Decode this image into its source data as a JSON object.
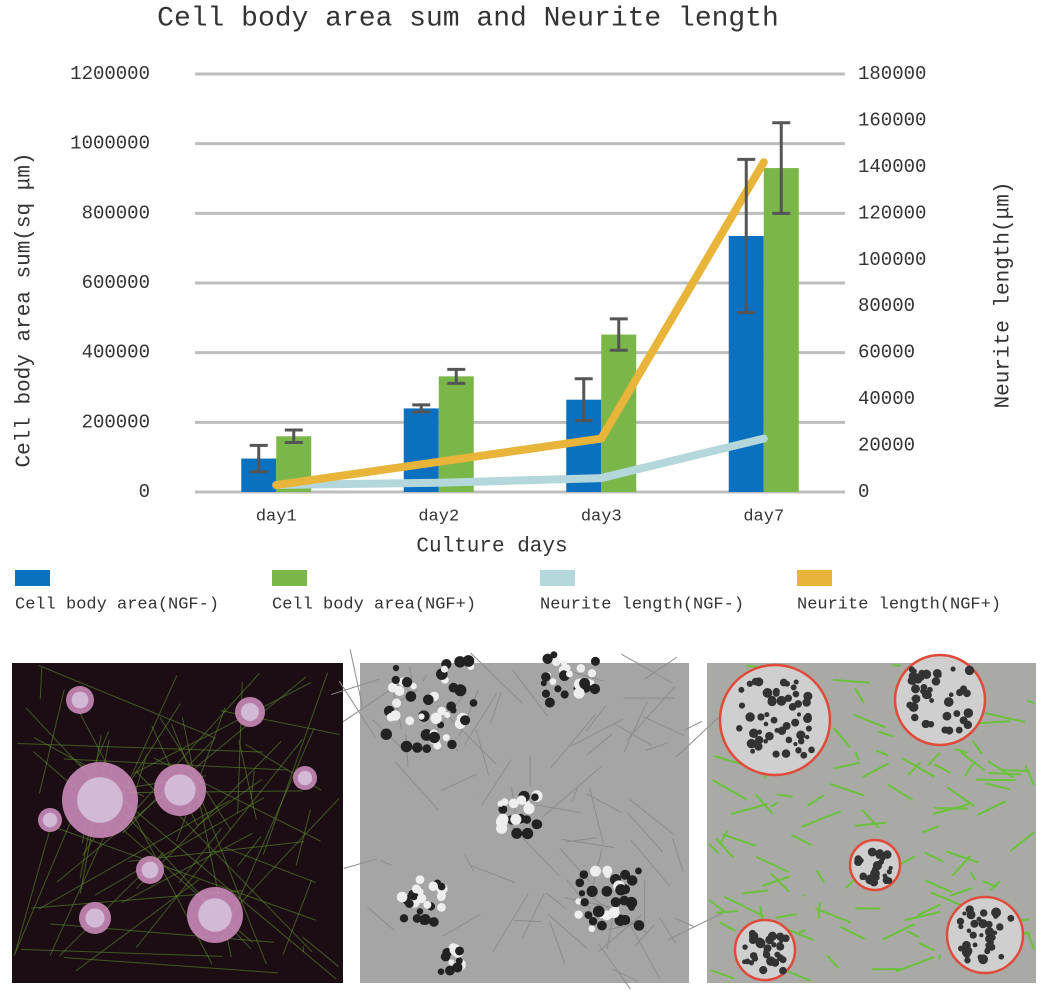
{
  "chart_data": {
    "type": "bar",
    "title": "Cell body area sum and Neurite length",
    "x_label": "Culture days",
    "y_label": "Cell body area sum(sq μm)",
    "y2_label": "Neurite length(μm)",
    "categories": [
      "day1",
      "day2",
      "day3",
      "day7"
    ],
    "ylim": [
      0,
      1200000
    ],
    "yticks": [
      0,
      200000,
      400000,
      600000,
      800000,
      1000000,
      1200000
    ],
    "y2lim": [
      0,
      180000
    ],
    "y2ticks": [
      0,
      20000,
      40000,
      60000,
      80000,
      100000,
      120000,
      140000,
      160000,
      180000
    ],
    "grid": true,
    "legend": "bottom",
    "series": [
      {
        "name": "Cell body area(NGF-)",
        "type": "bar",
        "color": "#0a70c0",
        "values": [
          96000,
          240000,
          265000,
          735000
        ],
        "errors": [
          38000,
          10000,
          60000,
          220000
        ]
      },
      {
        "name": "Cell body area(NGF+)",
        "type": "bar",
        "color": "#7ab648",
        "values": [
          160000,
          332000,
          452000,
          930000
        ],
        "errors": [
          18000,
          20000,
          45000,
          130000
        ]
      },
      {
        "name": "Neurite length(NGF-)",
        "type": "line",
        "axis": "y2",
        "color": "#b3d7da",
        "values": [
          3000,
          4000,
          6000,
          23000
        ]
      },
      {
        "name": "Neurite length(NGF+)",
        "type": "line",
        "axis": "y2",
        "color": "#e8b43a",
        "values": [
          3000,
          13000,
          23000,
          142000
        ]
      }
    ]
  }
}
